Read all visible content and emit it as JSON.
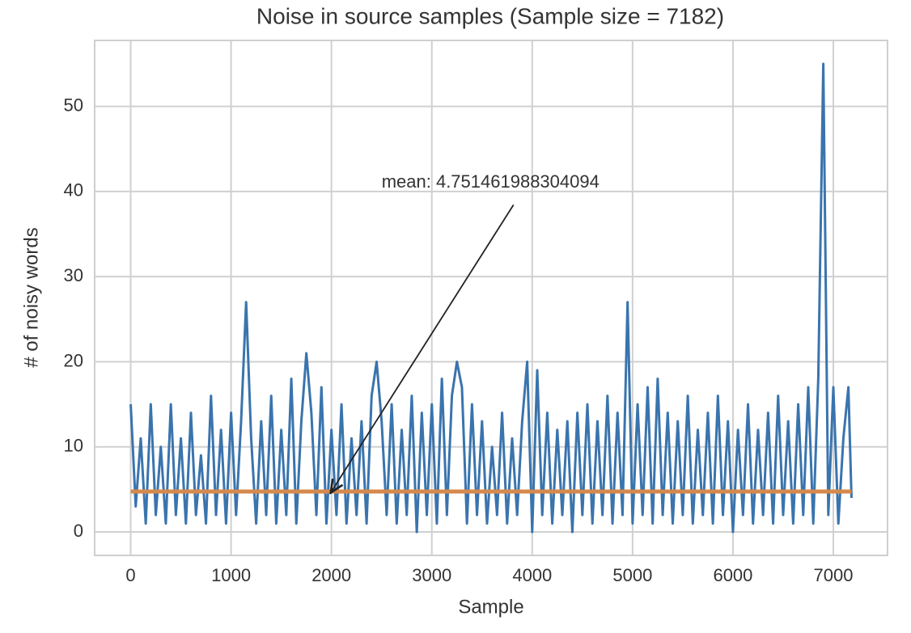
{
  "chart_data": {
    "type": "line",
    "title": "Noise in source samples (Sample size = 7182)",
    "x_label": "Sample",
    "y_label": "# of noisy words",
    "xlim": [
      -359,
      7540
    ],
    "ylim": [
      -2.75,
      57.75
    ],
    "xticks": [
      0,
      1000,
      2000,
      3000,
      4000,
      5000,
      6000,
      7000
    ],
    "yticks": [
      0,
      10,
      20,
      30,
      40,
      50
    ],
    "grid": true,
    "series": [
      {
        "color": "#3a74ad",
        "x": [
          0,
          50,
          100,
          150,
          200,
          250,
          300,
          350,
          400,
          450,
          500,
          550,
          600,
          650,
          700,
          750,
          800,
          850,
          900,
          950,
          1000,
          1050,
          1100,
          1150,
          1200,
          1250,
          1300,
          1350,
          1400,
          1450,
          1500,
          1550,
          1600,
          1650,
          1700,
          1750,
          1800,
          1850,
          1900,
          1950,
          2000,
          2050,
          2100,
          2150,
          2200,
          2250,
          2300,
          2350,
          2400,
          2450,
          2500,
          2550,
          2600,
          2650,
          2700,
          2750,
          2800,
          2850,
          2900,
          2950,
          3000,
          3050,
          3100,
          3150,
          3200,
          3250,
          3300,
          3350,
          3400,
          3450,
          3500,
          3550,
          3600,
          3650,
          3700,
          3750,
          3800,
          3850,
          3900,
          3950,
          4000,
          4050,
          4100,
          4150,
          4200,
          4250,
          4300,
          4350,
          4400,
          4450,
          4500,
          4550,
          4600,
          4650,
          4700,
          4750,
          4800,
          4850,
          4900,
          4950,
          5000,
          5050,
          5100,
          5150,
          5200,
          5250,
          5300,
          5350,
          5400,
          5450,
          5500,
          5550,
          5600,
          5650,
          5700,
          5750,
          5800,
          5850,
          5900,
          5950,
          6000,
          6050,
          6100,
          6150,
          6200,
          6250,
          6300,
          6350,
          6400,
          6450,
          6500,
          6550,
          6600,
          6650,
          6700,
          6750,
          6800,
          6850,
          6900,
          6950,
          7000,
          7050,
          7100,
          7150,
          7181
        ],
        "values": [
          15,
          3,
          11,
          1,
          15,
          2,
          10,
          1,
          15,
          2,
          11,
          1,
          14,
          2,
          9,
          1,
          16,
          2,
          12,
          1,
          14,
          2,
          13,
          27,
          11,
          1,
          13,
          2,
          16,
          1,
          12,
          2,
          18,
          1,
          13,
          21,
          14,
          2,
          17,
          1,
          12,
          2,
          15,
          1,
          11,
          2,
          13,
          1,
          16,
          20,
          13,
          2,
          15,
          1,
          12,
          2,
          16,
          0,
          14,
          2,
          15,
          1,
          18,
          2,
          16,
          20,
          17,
          1,
          15,
          2,
          13,
          1,
          10,
          2,
          14,
          1,
          11,
          2,
          13,
          20,
          0,
          19,
          2,
          14,
          1,
          12,
          2,
          13,
          0,
          14,
          2,
          15,
          1,
          13,
          2,
          16,
          1,
          14,
          2,
          27,
          1,
          15,
          2,
          17,
          1,
          18,
          2,
          14,
          1,
          13,
          2,
          16,
          1,
          12,
          2,
          14,
          1,
          16,
          2,
          13,
          0,
          12,
          2,
          15,
          1,
          12,
          2,
          14,
          1,
          16,
          2,
          13,
          1,
          15,
          2,
          17,
          1,
          18,
          55,
          2,
          17,
          1,
          11,
          17,
          4
        ]
      },
      {
        "color": "#d5894c",
        "x": [
          0,
          7181
        ],
        "values": [
          4.751461988304094,
          4.751461988304094
        ]
      }
    ],
    "annotation": {
      "text": "mean: 4.751461988304094",
      "xy": [
        2000,
        4.75
      ],
      "xytext": [
        2500,
        41
      ]
    }
  }
}
